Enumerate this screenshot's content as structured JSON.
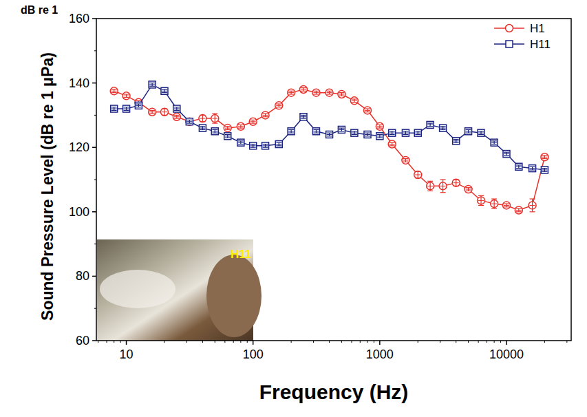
{
  "chart_data": {
    "type": "line",
    "x_label": "Frequency (Hz)",
    "y_label": "Sound Pressure Level (dB re 1 μPa)",
    "annotations": [
      "dB re 1",
      "H11"
    ],
    "x": [
      8,
      10,
      12.5,
      16,
      20,
      25,
      31.5,
      40,
      50,
      63,
      80,
      100,
      125,
      160,
      200,
      250,
      315,
      400,
      500,
      630,
      800,
      1000,
      1250,
      1600,
      2000,
      2500,
      3150,
      4000,
      5000,
      6300,
      8000,
      10000,
      12500,
      16000,
      20000
    ],
    "series": [
      {
        "name": "H1",
        "color": "#e8302a",
        "marker": "circle",
        "values": [
          137.5,
          136,
          134,
          131,
          131,
          129.5,
          128,
          129,
          129,
          126,
          126.5,
          128,
          130,
          133,
          137,
          138,
          137,
          137,
          136.5,
          134.5,
          131.5,
          126.5,
          121,
          116,
          111.5,
          108,
          108,
          109,
          107,
          103.5,
          102.5,
          102,
          100.5,
          102,
          117
        ],
        "errors": [
          0.5,
          0.5,
          0.5,
          0.5,
          1,
          0.5,
          0.5,
          1,
          1.5,
          0.5,
          0.5,
          0.5,
          0.5,
          0.5,
          0.5,
          0.5,
          0.5,
          0.5,
          0.5,
          0.5,
          0.5,
          0.5,
          0.5,
          0.5,
          1,
          1.5,
          2,
          1,
          0.5,
          1.5,
          1.5,
          0.5,
          0.5,
          2,
          0.5
        ]
      },
      {
        "name": "H11",
        "color": "#1b2480",
        "marker": "square",
        "values": [
          132,
          132,
          133,
          139.5,
          137.5,
          132,
          128,
          126,
          125,
          123.5,
          121.5,
          120.5,
          120.5,
          121,
          125,
          129.5,
          125,
          124,
          125.5,
          124.5,
          124,
          123.5,
          124.5,
          124.5,
          124.5,
          127,
          126,
          122,
          125,
          124.5,
          121.5,
          118,
          114,
          113.5,
          113
        ],
        "errors": [
          0.5,
          0.5,
          0.5,
          0.5,
          0.5,
          0.5,
          0.5,
          0.5,
          0.5,
          0.5,
          0.5,
          0.5,
          0.5,
          0.5,
          0.5,
          0.5,
          0.5,
          0.5,
          0.5,
          0.5,
          0.5,
          0.5,
          0.5,
          0.5,
          0.5,
          0.5,
          0.5,
          0.5,
          0.5,
          0.5,
          0.5,
          0.5,
          0.5,
          0.5,
          0.5
        ]
      }
    ],
    "xlim": [
      5.8,
      32400
    ],
    "xticks": [
      10,
      100,
      1000,
      10000
    ],
    "ylim": [
      60,
      160
    ],
    "yticks": [
      60,
      80,
      100,
      120,
      140,
      160
    ],
    "log": "x",
    "grid": false,
    "legend": "top-right"
  }
}
